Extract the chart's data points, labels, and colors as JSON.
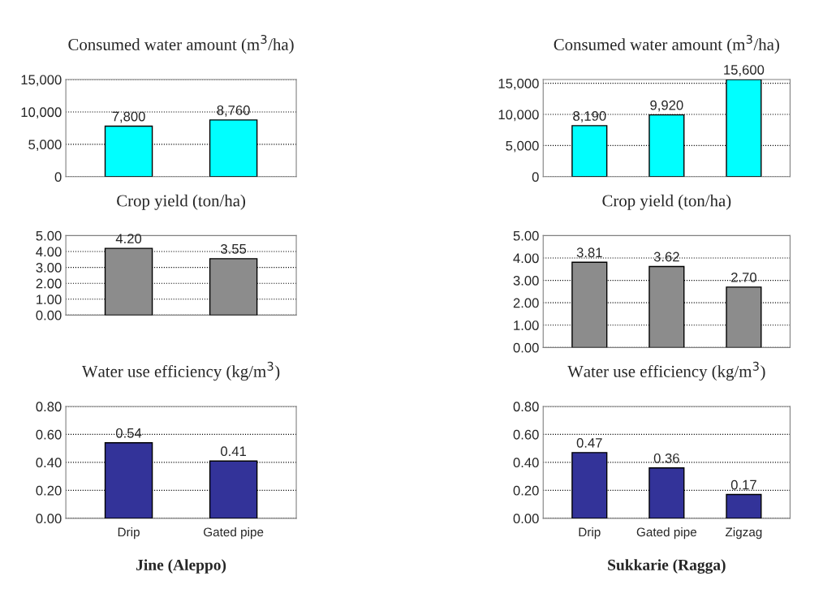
{
  "chart_data": [
    {
      "type": "bar",
      "title": "Consumed water amount (m$^{3}$/ha)",
      "categories": [
        null,
        null
      ],
      "values": [
        7800,
        8760
      ],
      "color": "#00ffff",
      "value_labels": [
        "7,800",
        "8,760"
      ],
      "ylim": [
        0,
        15000
      ],
      "yticks": [
        {
          "value": 0,
          "label": "0"
        },
        {
          "value": 5000,
          "label": "5,000"
        },
        {
          "value": 10000,
          "label": "10,000"
        },
        {
          "value": 15000,
          "label": "15,000"
        }
      ],
      "grid": "y",
      "tick_labels": "y"
    },
    {
      "type": "bar",
      "title": "Consumed water amount (m$^{3}$/ha)",
      "categories": [
        null,
        null,
        null
      ],
      "values": [
        8190,
        9920,
        15600
      ],
      "color": "#00ffff",
      "value_labels": [
        "8,190",
        "9,920",
        "15,600"
      ],
      "ylim": [
        0,
        15600
      ],
      "yticks": [
        {
          "value": 0,
          "label": "0"
        },
        {
          "value": 5000,
          "label": "5,000"
        },
        {
          "value": 10000,
          "label": "10,000"
        },
        {
          "value": 15000,
          "label": "15,000"
        }
      ],
      "grid": "y",
      "tick_labels": "y"
    },
    {
      "type": "bar",
      "title": "Crop yield (ton/ha)",
      "categories": [
        null,
        null
      ],
      "values": [
        4.2,
        3.55
      ],
      "color": "#8c8c8c",
      "value_labels": [
        "4.20",
        "3.55"
      ],
      "ylim": [
        0,
        5
      ],
      "yticks": [
        {
          "value": 0,
          "label": "0.00"
        },
        {
          "value": 1,
          "label": "1.00"
        },
        {
          "value": 2,
          "label": "2.00"
        },
        {
          "value": 3,
          "label": "3.00"
        },
        {
          "value": 4,
          "label": "4.00"
        },
        {
          "value": 5,
          "label": "5.00"
        }
      ],
      "grid": "y",
      "tick_labels": "y"
    },
    {
      "type": "bar",
      "title": "Crop yield (ton/ha)",
      "categories": [
        null,
        null,
        null
      ],
      "values": [
        3.81,
        3.62,
        2.7
      ],
      "color": "#8c8c8c",
      "value_labels": [
        "3.81",
        "3.62",
        "2.70"
      ],
      "ylim": [
        0,
        5
      ],
      "yticks": [
        {
          "value": 0,
          "label": "0.00"
        },
        {
          "value": 1,
          "label": "1.00"
        },
        {
          "value": 2,
          "label": "2.00"
        },
        {
          "value": 3,
          "label": "3.00"
        },
        {
          "value": 4,
          "label": "4.00"
        },
        {
          "value": 5,
          "label": "5.00"
        }
      ],
      "grid": "y",
      "tick_labels": "y"
    },
    {
      "type": "bar",
      "title": "Water use efficiency (kg/m$^{3}$)",
      "xlabel": "Jine (Aleppo)",
      "categories": [
        "Drip",
        "Gated pipe"
      ],
      "values": [
        0.54,
        0.41
      ],
      "color": "#333399",
      "value_labels": [
        "0.54",
        "0.41"
      ],
      "ylim": [
        0,
        0.8
      ],
      "yticks": [
        {
          "value": 0,
          "label": "0.00"
        },
        {
          "value": 0.2,
          "label": "0.20"
        },
        {
          "value": 0.4,
          "label": "0.40"
        },
        {
          "value": 0.6,
          "label": "0.60"
        },
        {
          "value": 0.8,
          "label": "0.80"
        }
      ],
      "grid": "y"
    },
    {
      "type": "bar",
      "title": "Water use efficiency (kg/m$^{3}$)",
      "xlabel": "Sukkarie (Ragga)",
      "categories": [
        "Drip",
        "Gated pipe",
        "Zigzag"
      ],
      "values": [
        0.47,
        0.36,
        0.17
      ],
      "color": "#333399",
      "value_labels": [
        "0.47",
        "0.36",
        "0.17"
      ],
      "ylim": [
        0,
        0.8
      ],
      "yticks": [
        {
          "value": 0,
          "label": "0.00"
        },
        {
          "value": 0.2,
          "label": "0.20"
        },
        {
          "value": 0.4,
          "label": "0.40"
        },
        {
          "value": 0.6,
          "label": "0.60"
        },
        {
          "value": 0.8,
          "label": "0.80"
        }
      ],
      "grid": "y"
    }
  ]
}
